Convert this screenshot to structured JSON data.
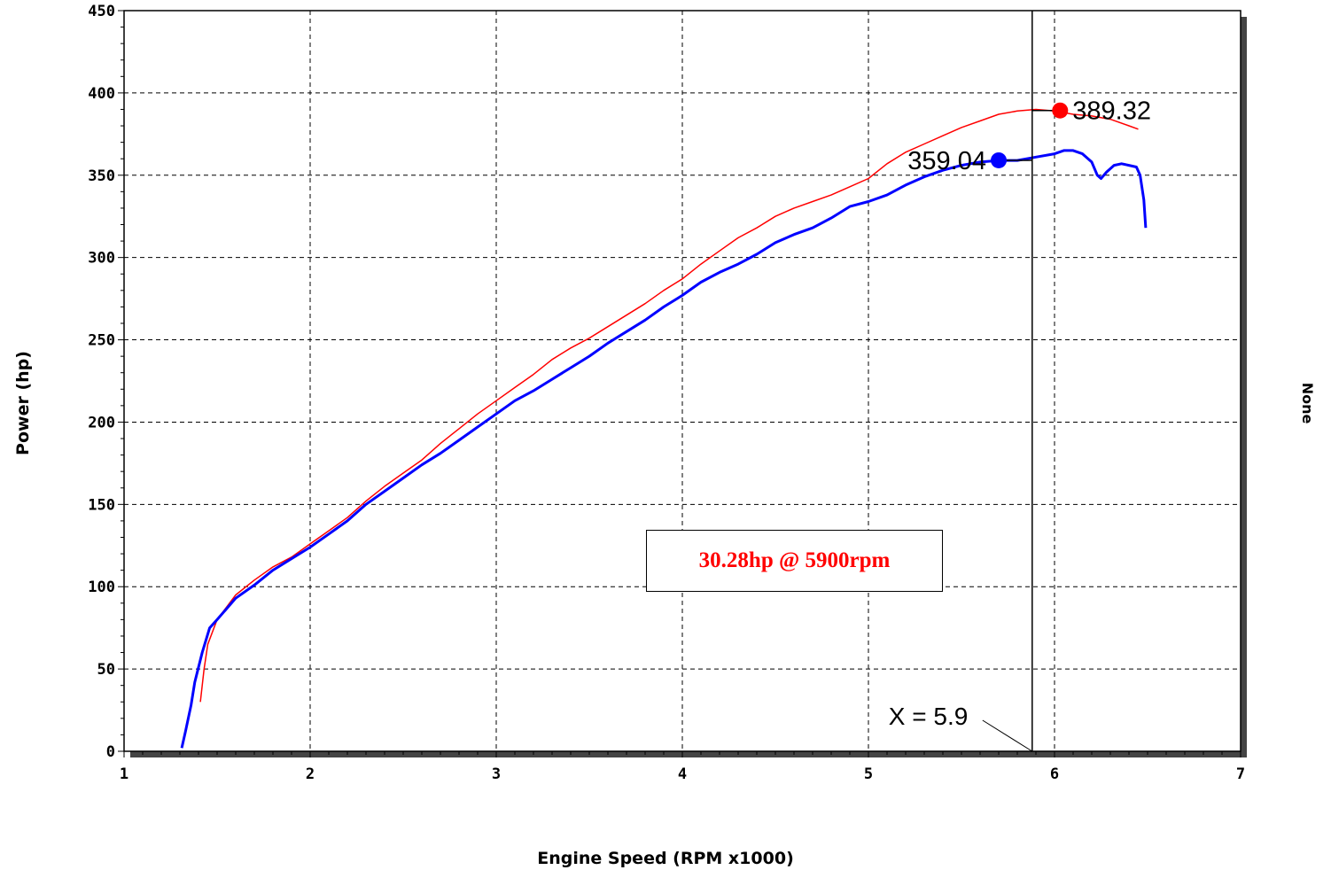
{
  "chart_data": {
    "type": "line",
    "xlabel": "Engine Speed (RPM x1000)",
    "ylabel": "Power (hp)",
    "y2label": "None",
    "xlim": [
      1,
      7
    ],
    "ylim": [
      0,
      450
    ],
    "x_ticks": [
      "1",
      "2",
      "3",
      "4",
      "5",
      "6",
      "7"
    ],
    "y_ticks": [
      "0",
      "50",
      "100",
      "150",
      "200",
      "250",
      "300",
      "350",
      "400",
      "450"
    ],
    "grid": true,
    "cursor": {
      "x": 5.88,
      "label": "X = 5.9"
    },
    "annotation": "30.28hp @ 5900rpm",
    "series": [
      {
        "color": "#ff0000",
        "peak": {
          "x": 6.03,
          "y": 389.32,
          "label": "389.32"
        },
        "points": [
          [
            1.41,
            30
          ],
          [
            1.43,
            50
          ],
          [
            1.45,
            65
          ],
          [
            1.5,
            80
          ],
          [
            1.6,
            95
          ],
          [
            1.7,
            104
          ],
          [
            1.8,
            112
          ],
          [
            1.9,
            118
          ],
          [
            2.0,
            126
          ],
          [
            2.1,
            134
          ],
          [
            2.2,
            142
          ],
          [
            2.3,
            152
          ],
          [
            2.4,
            161
          ],
          [
            2.5,
            169
          ],
          [
            2.6,
            177
          ],
          [
            2.7,
            187
          ],
          [
            2.8,
            196
          ],
          [
            2.9,
            205
          ],
          [
            3.0,
            213
          ],
          [
            3.1,
            221
          ],
          [
            3.2,
            229
          ],
          [
            3.3,
            238
          ],
          [
            3.4,
            245
          ],
          [
            3.5,
            251
          ],
          [
            3.6,
            258
          ],
          [
            3.7,
            265
          ],
          [
            3.8,
            272
          ],
          [
            3.9,
            280
          ],
          [
            4.0,
            287
          ],
          [
            4.1,
            296
          ],
          [
            4.2,
            304
          ],
          [
            4.3,
            312
          ],
          [
            4.4,
            318
          ],
          [
            4.5,
            325
          ],
          [
            4.6,
            330
          ],
          [
            4.7,
            334
          ],
          [
            4.8,
            338
          ],
          [
            4.9,
            343
          ],
          [
            5.0,
            348
          ],
          [
            5.1,
            357
          ],
          [
            5.2,
            364
          ],
          [
            5.3,
            369
          ],
          [
            5.4,
            374
          ],
          [
            5.5,
            379
          ],
          [
            5.6,
            383
          ],
          [
            5.7,
            387
          ],
          [
            5.8,
            389
          ],
          [
            5.9,
            390
          ],
          [
            6.0,
            389
          ],
          [
            6.1,
            387
          ],
          [
            6.2,
            386
          ],
          [
            6.3,
            384
          ],
          [
            6.4,
            380
          ],
          [
            6.45,
            378
          ]
        ]
      },
      {
        "color": "#0000ff",
        "peak": {
          "x": 5.7,
          "y": 359.04,
          "label": "359.04"
        },
        "points": [
          [
            1.31,
            2
          ],
          [
            1.33,
            12
          ],
          [
            1.36,
            28
          ],
          [
            1.38,
            42
          ],
          [
            1.42,
            60
          ],
          [
            1.46,
            75
          ],
          [
            1.5,
            80
          ],
          [
            1.6,
            93
          ],
          [
            1.7,
            101
          ],
          [
            1.8,
            110
          ],
          [
            1.9,
            117
          ],
          [
            2.0,
            124
          ],
          [
            2.1,
            132
          ],
          [
            2.2,
            140
          ],
          [
            2.3,
            150
          ],
          [
            2.4,
            158
          ],
          [
            2.5,
            166
          ],
          [
            2.6,
            174
          ],
          [
            2.7,
            181
          ],
          [
            2.8,
            189
          ],
          [
            2.9,
            197
          ],
          [
            3.0,
            205
          ],
          [
            3.1,
            213
          ],
          [
            3.2,
            219
          ],
          [
            3.3,
            226
          ],
          [
            3.4,
            233
          ],
          [
            3.5,
            240
          ],
          [
            3.6,
            248
          ],
          [
            3.7,
            255
          ],
          [
            3.8,
            262
          ],
          [
            3.9,
            270
          ],
          [
            4.0,
            277
          ],
          [
            4.1,
            285
          ],
          [
            4.2,
            291
          ],
          [
            4.3,
            296
          ],
          [
            4.4,
            302
          ],
          [
            4.5,
            309
          ],
          [
            4.6,
            314
          ],
          [
            4.7,
            318
          ],
          [
            4.8,
            324
          ],
          [
            4.9,
            331
          ],
          [
            5.0,
            334
          ],
          [
            5.1,
            338
          ],
          [
            5.2,
            344
          ],
          [
            5.3,
            349
          ],
          [
            5.4,
            353
          ],
          [
            5.5,
            356
          ],
          [
            5.6,
            358
          ],
          [
            5.7,
            359
          ],
          [
            5.8,
            359
          ],
          [
            5.9,
            361
          ],
          [
            6.0,
            363
          ],
          [
            6.05,
            365
          ],
          [
            6.1,
            365
          ],
          [
            6.15,
            363
          ],
          [
            6.2,
            358
          ],
          [
            6.23,
            350
          ],
          [
            6.25,
            348
          ],
          [
            6.28,
            352
          ],
          [
            6.32,
            356
          ],
          [
            6.36,
            357
          ],
          [
            6.4,
            356
          ],
          [
            6.44,
            355
          ],
          [
            6.46,
            350
          ],
          [
            6.48,
            335
          ],
          [
            6.49,
            318
          ]
        ]
      }
    ]
  }
}
